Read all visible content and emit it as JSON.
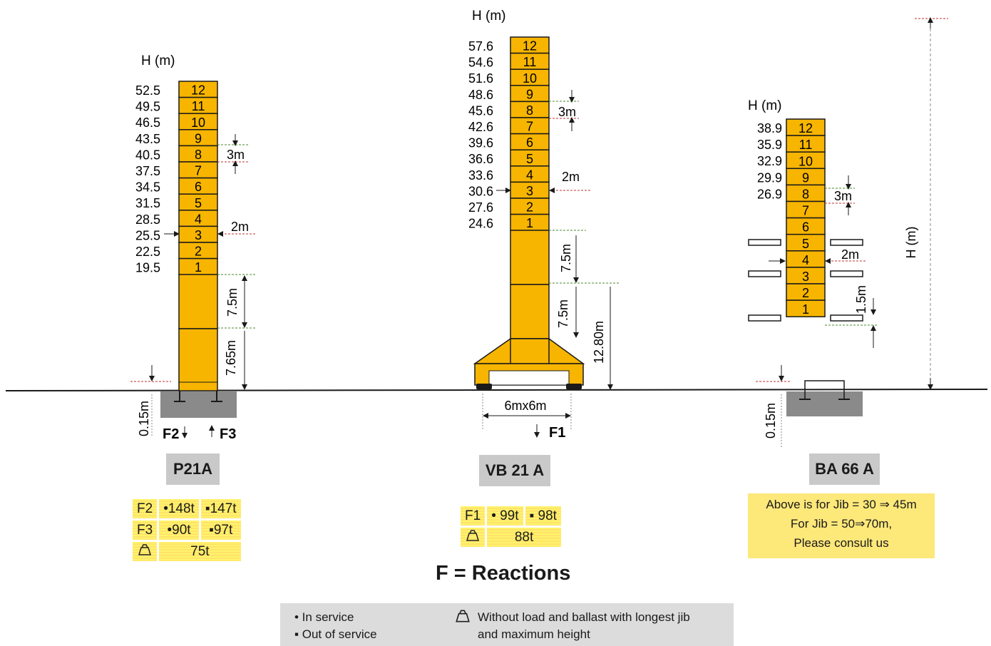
{
  "axis_label": "H (m)",
  "ground_color": "#1a1a1a",
  "mast_color": "#f7b500",
  "foundation_color": "#8a8a8a",
  "towers": [
    {
      "name": "P21A",
      "heights": [
        "52.5",
        "49.5",
        "46.5",
        "43.5",
        "40.5",
        "37.5",
        "34.5",
        "31.5",
        "28.5",
        "25.5",
        "22.5",
        "19.5"
      ],
      "sections": [
        "12",
        "11",
        "10",
        "9",
        "8",
        "7",
        "6",
        "5",
        "4",
        "3",
        "2",
        "1"
      ],
      "dim_section": "3m",
      "dim_offset": "2m",
      "dim_base1": "7.5m",
      "dim_base2": "7.65m",
      "dim_depth": "0.15m",
      "force_left": "F2",
      "force_right": "F3",
      "table": {
        "row1": {
          "label": "F2",
          "in_service": "•148t",
          "out_service": "▪147t"
        },
        "row2": {
          "label": "F3",
          "in_service": "•90t",
          "out_service": "▪97t"
        },
        "row3": {
          "value": "75t"
        }
      }
    },
    {
      "name": "VB 21 A",
      "heights": [
        "57.6",
        "54.6",
        "51.6",
        "48.6",
        "45.6",
        "42.6",
        "39.6",
        "36.6",
        "33.6",
        "30.6",
        "27.6",
        "24.6"
      ],
      "sections": [
        "12",
        "11",
        "10",
        "9",
        "8",
        "7",
        "6",
        "5",
        "4",
        "3",
        "2",
        "1"
      ],
      "dim_section": "3m",
      "dim_offset": "2m",
      "dim_base1": "7.5m",
      "dim_base2": "7.5m",
      "dim_total": "12.80m",
      "dim_base_size": "6mx6m",
      "force": "F1",
      "table": {
        "row1": {
          "label": "F1",
          "in_service": "• 99t",
          "out_service": "▪ 98t"
        },
        "row2": {
          "value": "88t"
        }
      }
    },
    {
      "name": "BA 66 A",
      "heights": [
        "38.9",
        "35.9",
        "32.9",
        "29.9",
        "26.9"
      ],
      "sections": [
        "12",
        "11",
        "10",
        "9",
        "8",
        "7",
        "6",
        "5",
        "4",
        "3",
        "2",
        "1"
      ],
      "dim_section": "3m",
      "dim_offset": "2m",
      "dim_bottom": "1.5m",
      "dim_depth": "0.15m",
      "h_vertical": "H (m)",
      "note": [
        "Above is for Jib = 30 ⇒ 45m",
        "For Jib = 50⇒70m,",
        "Please consult us"
      ]
    }
  ],
  "reactions_title": "F = Reactions",
  "legend": {
    "in_service": "• In service",
    "out_service": "▪ Out of service",
    "condition_line1": "Without load and ballast with longest jib",
    "condition_line2": "and maximum height"
  }
}
